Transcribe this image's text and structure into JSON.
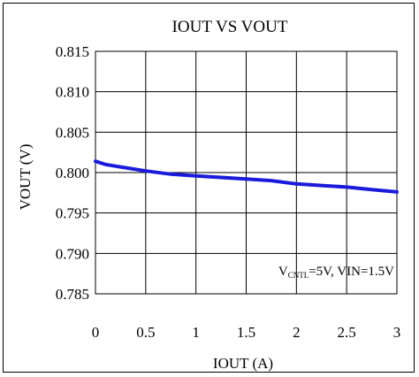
{
  "chart_data": {
    "type": "line",
    "title": "IOUT VS VOUT",
    "xlabel": "IOUT (A)",
    "ylabel": "VOUT (V)",
    "xlim": [
      0,
      3
    ],
    "ylim": [
      0.785,
      0.815
    ],
    "xticks": [
      0,
      0.5,
      1,
      1.5,
      2,
      2.5,
      3
    ],
    "xtick_labels": [
      "0",
      "0.5",
      "1",
      "1.5",
      "2",
      "2.5",
      "3"
    ],
    "yticks": [
      0.815,
      0.81,
      0.805,
      0.8,
      0.795,
      0.79,
      0.785
    ],
    "ytick_labels": [
      "0.815",
      "0.810",
      "0.805",
      "0.800",
      "0.795",
      "0.790",
      "0.785"
    ],
    "grid": true,
    "series": [
      {
        "color": "#1a1adb",
        "x": [
          0,
          0.1,
          0.25,
          0.5,
          0.75,
          1,
          1.25,
          1.5,
          1.75,
          2,
          2.25,
          2.5,
          2.75,
          3
        ],
        "y": [
          0.8014,
          0.801,
          0.8007,
          0.8002,
          0.7998,
          0.7996,
          0.7994,
          0.7992,
          0.799,
          0.7986,
          0.7984,
          0.7982,
          0.7979,
          0.7976
        ]
      }
    ],
    "annotation": {
      "v_letter": "V",
      "v_subscript": "CNTL",
      "rest": "=5V, VIN=1.5V"
    }
  }
}
